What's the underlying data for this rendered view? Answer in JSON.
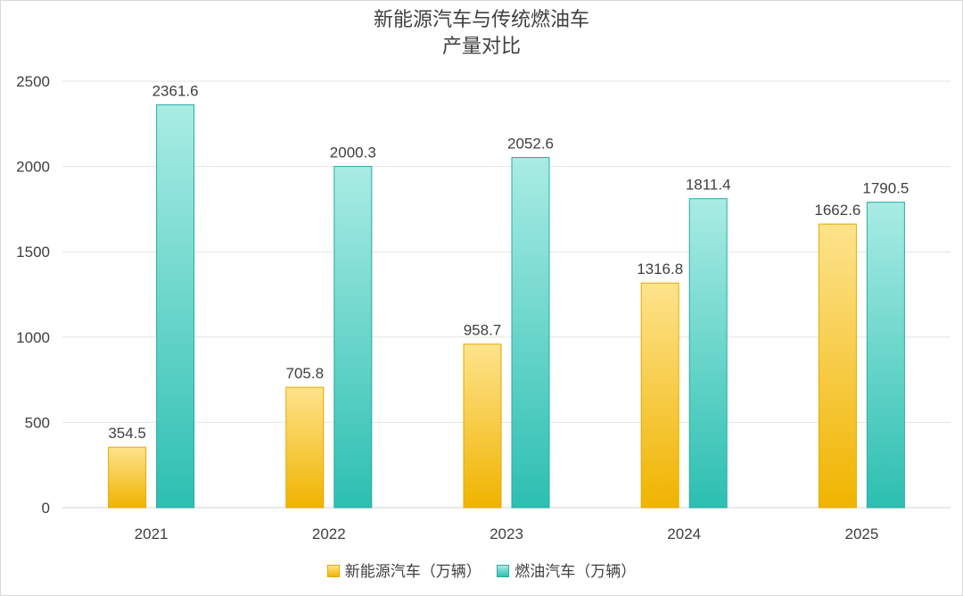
{
  "chart_data": {
    "type": "bar",
    "title_line1": "新能源汽车与传统燃油车",
    "title_line2": "产量对比",
    "categories": [
      "2021",
      "2022",
      "2023",
      "2024",
      "2025"
    ],
    "series": [
      {
        "name": "新能源汽车（万辆）",
        "values": [
          354.5,
          705.8,
          958.7,
          1316.8,
          1662.6
        ],
        "color": "#f0b400"
      },
      {
        "name": "燃油汽车（万辆）",
        "values": [
          2361.6,
          2000.3,
          2052.6,
          1811.4,
          1790.5
        ],
        "color": "#2ec0b2"
      }
    ],
    "value_labels": [
      [
        "354.5",
        "705.8",
        "958.7",
        "1316.8",
        "1662.6"
      ],
      [
        "2361.6",
        "2000.3",
        "2052.6",
        "1811.4",
        "1790.5"
      ]
    ],
    "yticks": [
      "0",
      "500",
      "1000",
      "1500",
      "2000",
      "2500"
    ],
    "ylim": [
      0,
      2500
    ],
    "grid": true,
    "legend_position": "bottom"
  }
}
